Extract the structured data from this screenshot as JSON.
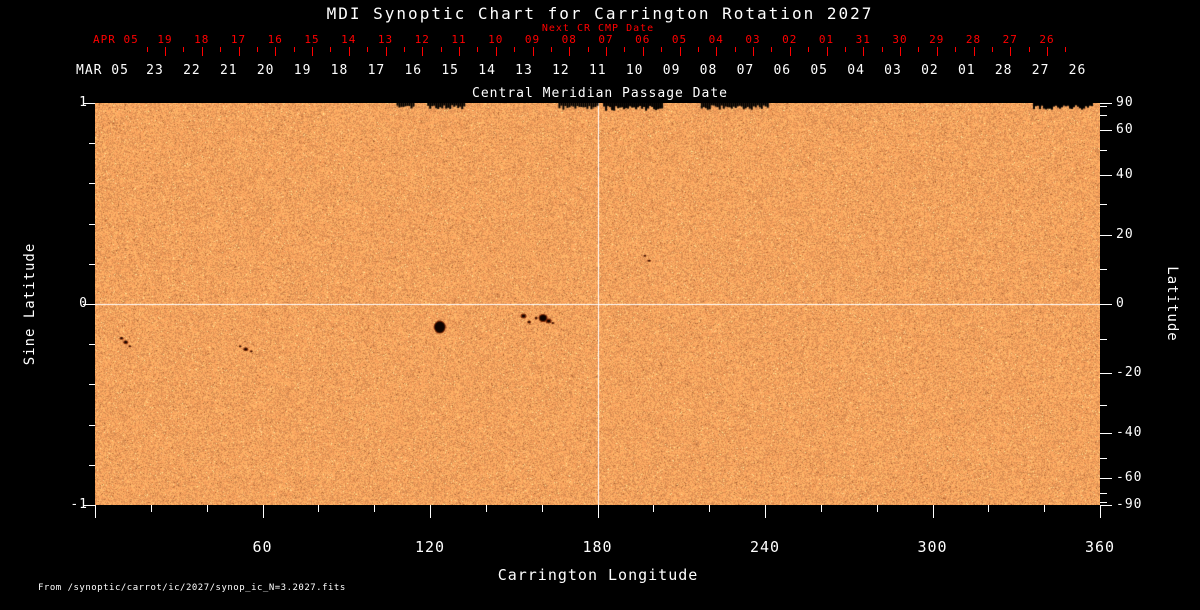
{
  "title": "MDI Synoptic Chart for Carrington Rotation 2027",
  "colors": {
    "background": "#000000",
    "text": "#ffffff",
    "date_axis_red": "#ff0000",
    "map_base": "#f6a05c",
    "grid_line": "#ffffff",
    "sunspot_core": "#0d0300",
    "sunspot_penumbra": "#7a2808"
  },
  "top_axis": {
    "label": "Next CR CMP Date",
    "prefix": "APR 05",
    "dates": [
      "19",
      "18",
      "17",
      "16",
      "15",
      "14",
      "13",
      "12",
      "11",
      "10",
      "09",
      "08",
      "07",
      "06",
      "05",
      "04",
      "03",
      "02",
      "01",
      "31",
      "30",
      "29",
      "28",
      "27",
      "26"
    ]
  },
  "cmp_axis": {
    "label": "Central Meridian Passage Date",
    "prefix": "MAR 05",
    "dates": [
      "23",
      "22",
      "21",
      "20",
      "19",
      "18",
      "17",
      "16",
      "15",
      "14",
      "13",
      "12",
      "11",
      "10",
      "09",
      "08",
      "07",
      "06",
      "05",
      "04",
      "03",
      "02",
      "01",
      "28",
      "27",
      "26"
    ]
  },
  "x_axis": {
    "label": "Carrington Longitude",
    "range": [
      0,
      360
    ],
    "labeled_ticks": [
      60,
      120,
      180,
      240,
      300,
      360
    ]
  },
  "y_left": {
    "label": "Sine Latitude",
    "range": [
      -1,
      1
    ],
    "labeled_ticks": [
      1,
      0,
      -1
    ]
  },
  "y_right": {
    "label": "Latitude",
    "labeled_ticks": [
      90,
      60,
      40,
      20,
      0,
      -20,
      -40,
      -60,
      -90
    ]
  },
  "source_note": "From /synoptic/carrot/ic/2027/synop_ic_N=3.2027.fits",
  "chart_data": {
    "type": "heatmap",
    "title": "MDI Synoptic Chart for Carrington Rotation 2027",
    "xlabel": "Carrington Longitude",
    "ylabel": "Sine Latitude",
    "ylabel_right": "Latitude",
    "xlim": [
      0,
      360
    ],
    "ylim": [
      -1,
      1
    ],
    "grid_lines": {
      "x": [
        180
      ],
      "y": [
        0
      ]
    },
    "sunspots": [
      {
        "lon": 9.5,
        "sinlat": -0.17,
        "w": 4,
        "h": 3
      },
      {
        "lon": 11.0,
        "sinlat": -0.19,
        "w": 5,
        "h": 4
      },
      {
        "lon": 12.5,
        "sinlat": -0.21,
        "w": 3,
        "h": 2
      },
      {
        "lon": 52.0,
        "sinlat": -0.21,
        "w": 3,
        "h": 2
      },
      {
        "lon": 54.0,
        "sinlat": -0.225,
        "w": 5,
        "h": 4
      },
      {
        "lon": 56.0,
        "sinlat": -0.235,
        "w": 3,
        "h": 2
      },
      {
        "lon": 123.5,
        "sinlat": -0.115,
        "w": 12,
        "h": 13,
        "core_ratio": 0.85
      },
      {
        "lon": 153.5,
        "sinlat": -0.06,
        "w": 6,
        "h": 5
      },
      {
        "lon": 155.5,
        "sinlat": -0.09,
        "w": 4,
        "h": 3
      },
      {
        "lon": 158.0,
        "sinlat": -0.07,
        "w": 3,
        "h": 3
      },
      {
        "lon": 160.5,
        "sinlat": -0.07,
        "w": 9,
        "h": 8,
        "core_ratio": 0.75
      },
      {
        "lon": 162.5,
        "sinlat": -0.085,
        "w": 6,
        "h": 5
      },
      {
        "lon": 164.0,
        "sinlat": -0.095,
        "w": 3,
        "h": 2
      },
      {
        "lon": 197.0,
        "sinlat": 0.24,
        "w": 3,
        "h": 2
      },
      {
        "lon": 198.5,
        "sinlat": 0.215,
        "w": 4,
        "h": 2
      }
    ],
    "edge_artifacts": [
      {
        "lon": [
          108,
          114
        ],
        "h": 4
      },
      {
        "lon": [
          119,
          132
        ],
        "h": 5
      },
      {
        "lon": [
          166,
          180
        ],
        "h": 5
      },
      {
        "lon": [
          182,
          203
        ],
        "h": 6
      },
      {
        "lon": [
          217,
          241
        ],
        "h": 5
      },
      {
        "lon": [
          336,
          357
        ],
        "h": 5
      }
    ]
  }
}
